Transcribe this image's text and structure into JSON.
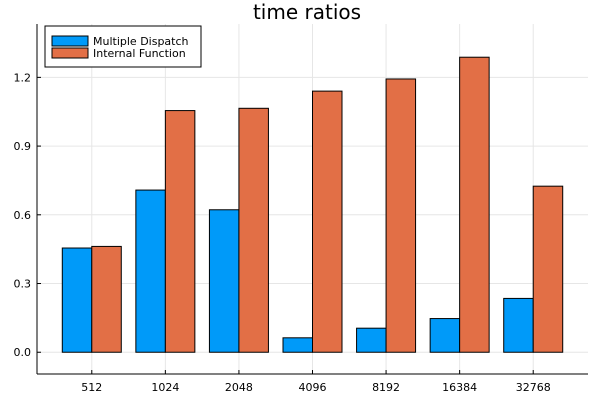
{
  "chart_data": {
    "type": "bar",
    "title": "time ratios",
    "xlabel": "",
    "ylabel": "",
    "categories": [
      "512",
      "1024",
      "2048",
      "4096",
      "8192",
      "16384",
      "32768"
    ],
    "series": [
      {
        "name": "Multiple Dispatch",
        "color": "#009af9",
        "values": [
          0.455,
          0.708,
          0.622,
          0.063,
          0.105,
          0.147,
          0.235
        ]
      },
      {
        "name": "Internal Function",
        "color": "#e26f46",
        "values": [
          0.462,
          1.055,
          1.065,
          1.14,
          1.193,
          1.288,
          0.725
        ]
      }
    ],
    "ylim": [
      -0.095,
      1.433
    ],
    "yticks": [
      0.0,
      0.3,
      0.6,
      0.9,
      1.2
    ],
    "ytick_labels": [
      "0.0",
      "0.3",
      "0.6",
      "0.9",
      "1.2"
    ],
    "grid": true,
    "legend_position": "top-left"
  }
}
